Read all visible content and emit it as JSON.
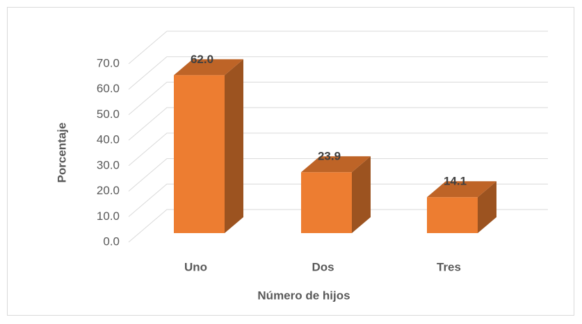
{
  "chart_data": {
    "type": "bar3d",
    "categories": [
      "Uno",
      "Dos",
      "Tres"
    ],
    "values": [
      62.0,
      23.9,
      14.1
    ],
    "value_labels": [
      "62.0",
      "23.9",
      "14.1"
    ],
    "color": "#ed7d31",
    "xlabel": "Número de hijos",
    "ylabel": "Porcentaje",
    "ylim": [
      0,
      70
    ],
    "yticks": [
      {
        "value": 0,
        "label": "0.0"
      },
      {
        "value": 10,
        "label": "10.0"
      },
      {
        "value": 20,
        "label": "20.0"
      },
      {
        "value": 30,
        "label": "30.0"
      },
      {
        "value": 40,
        "label": "40.0"
      },
      {
        "value": 50,
        "label": "50.0"
      },
      {
        "value": 60,
        "label": "60.0"
      },
      {
        "value": 70,
        "label": "70.0"
      }
    ],
    "grid": true
  }
}
